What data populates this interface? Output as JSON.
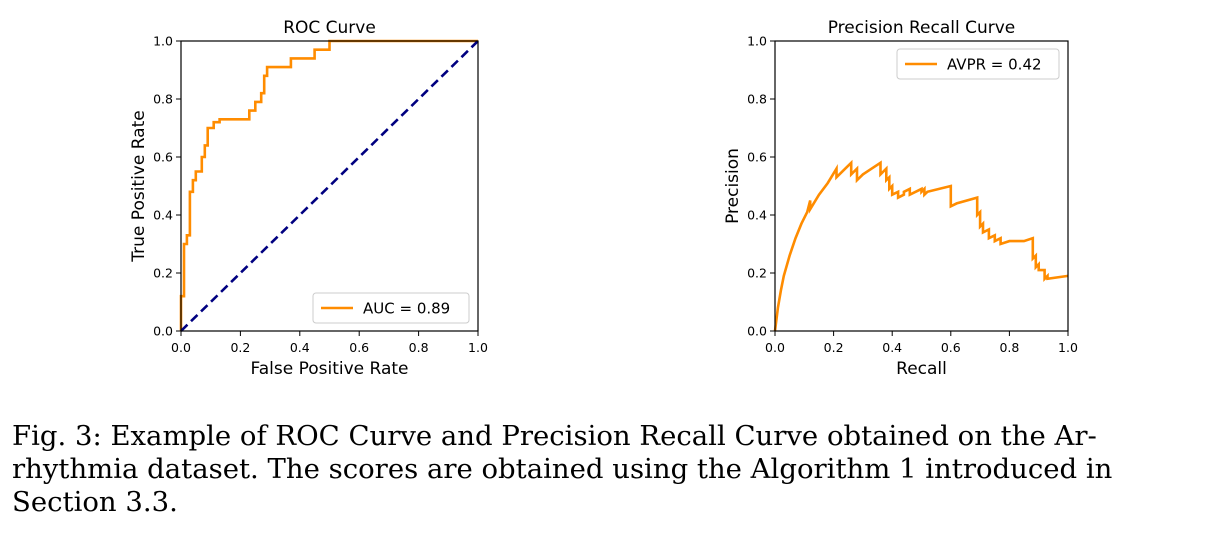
{
  "chart_data": [
    {
      "type": "line",
      "title": "ROC Curve",
      "xlabel": "False Positive Rate",
      "ylabel": "True Positive Rate",
      "xlim": [
        0,
        1
      ],
      "ylim": [
        0,
        1
      ],
      "xticks": [
        "0.0",
        "0.2",
        "0.4",
        "0.6",
        "0.8",
        "1.0"
      ],
      "yticks": [
        "0.0",
        "0.2",
        "0.4",
        "0.6",
        "0.8",
        "1.0"
      ],
      "grid": false,
      "legend_position": "lower-right",
      "series": [
        {
          "name": "AUC = 0.89",
          "color": "#ff8c00",
          "style": "solid",
          "x": [
            0.0,
            0.0,
            0.01,
            0.01,
            0.02,
            0.02,
            0.03,
            0.03,
            0.04,
            0.04,
            0.05,
            0.05,
            0.07,
            0.07,
            0.08,
            0.08,
            0.09,
            0.09,
            0.11,
            0.11,
            0.13,
            0.13,
            0.23,
            0.23,
            0.25,
            0.25,
            0.27,
            0.27,
            0.28,
            0.28,
            0.29,
            0.29,
            0.37,
            0.37,
            0.45,
            0.45,
            0.5,
            0.5,
            1.0
          ],
          "y": [
            0.0,
            0.12,
            0.12,
            0.3,
            0.3,
            0.33,
            0.33,
            0.48,
            0.48,
            0.52,
            0.52,
            0.55,
            0.55,
            0.6,
            0.6,
            0.64,
            0.64,
            0.7,
            0.7,
            0.72,
            0.72,
            0.73,
            0.73,
            0.76,
            0.76,
            0.79,
            0.79,
            0.82,
            0.82,
            0.88,
            0.88,
            0.91,
            0.91,
            0.94,
            0.94,
            0.97,
            0.97,
            1.0,
            1.0
          ]
        },
        {
          "name": "",
          "color": "#000080",
          "style": "dashed",
          "x": [
            0,
            1
          ],
          "y": [
            0,
            1
          ]
        }
      ]
    },
    {
      "type": "line",
      "title": "Precision Recall Curve",
      "xlabel": "Recall",
      "ylabel": "Precision",
      "xlim": [
        0,
        1
      ],
      "ylim": [
        0,
        1
      ],
      "xticks": [
        "0.0",
        "0.2",
        "0.4",
        "0.6",
        "0.8",
        "1.0"
      ],
      "yticks": [
        "0.0",
        "0.2",
        "0.4",
        "0.6",
        "0.8",
        "1.0"
      ],
      "grid": false,
      "legend_position": "upper-right",
      "series": [
        {
          "name": "AVPR = 0.42",
          "color": "#ff8c00",
          "style": "solid",
          "x": [
            0.0,
            0.01,
            0.02,
            0.03,
            0.05,
            0.07,
            0.09,
            0.11,
            0.12,
            0.12,
            0.15,
            0.18,
            0.21,
            0.21,
            0.24,
            0.26,
            0.26,
            0.28,
            0.28,
            0.3,
            0.33,
            0.36,
            0.36,
            0.38,
            0.38,
            0.39,
            0.39,
            0.4,
            0.4,
            0.42,
            0.42,
            0.44,
            0.44,
            0.46,
            0.46,
            0.48,
            0.48,
            0.5,
            0.5,
            0.51,
            0.51,
            0.52,
            0.52,
            0.6,
            0.6,
            0.62,
            0.62,
            0.69,
            0.69,
            0.7,
            0.7,
            0.71,
            0.71,
            0.73,
            0.73,
            0.75,
            0.75,
            0.77,
            0.77,
            0.8,
            0.8,
            0.85,
            0.85,
            0.88,
            0.88,
            0.89,
            0.89,
            0.9,
            0.9,
            0.92,
            0.92,
            0.93,
            0.93,
            1.0
          ],
          "y": [
            0.0,
            0.08,
            0.14,
            0.19,
            0.26,
            0.32,
            0.37,
            0.41,
            0.45,
            0.42,
            0.47,
            0.51,
            0.56,
            0.53,
            0.56,
            0.58,
            0.54,
            0.56,
            0.52,
            0.54,
            0.56,
            0.58,
            0.54,
            0.56,
            0.52,
            0.53,
            0.49,
            0.5,
            0.47,
            0.48,
            0.46,
            0.47,
            0.48,
            0.49,
            0.47,
            0.48,
            0.48,
            0.49,
            0.48,
            0.49,
            0.47,
            0.48,
            0.48,
            0.5,
            0.43,
            0.44,
            0.44,
            0.46,
            0.4,
            0.41,
            0.36,
            0.37,
            0.34,
            0.35,
            0.32,
            0.33,
            0.31,
            0.32,
            0.3,
            0.31,
            0.31,
            0.31,
            0.31,
            0.32,
            0.25,
            0.26,
            0.22,
            0.23,
            0.21,
            0.21,
            0.18,
            0.19,
            0.18,
            0.19
          ]
        }
      ]
    }
  ],
  "caption": {
    "line1": "Fig. 3: Example of ROC Curve and Precision Recall Curve obtained on the Ar-",
    "line2": "rhythmia dataset. The scores are obtained using the Algorithm 1 introduced in",
    "line3": "Section 3.3."
  }
}
